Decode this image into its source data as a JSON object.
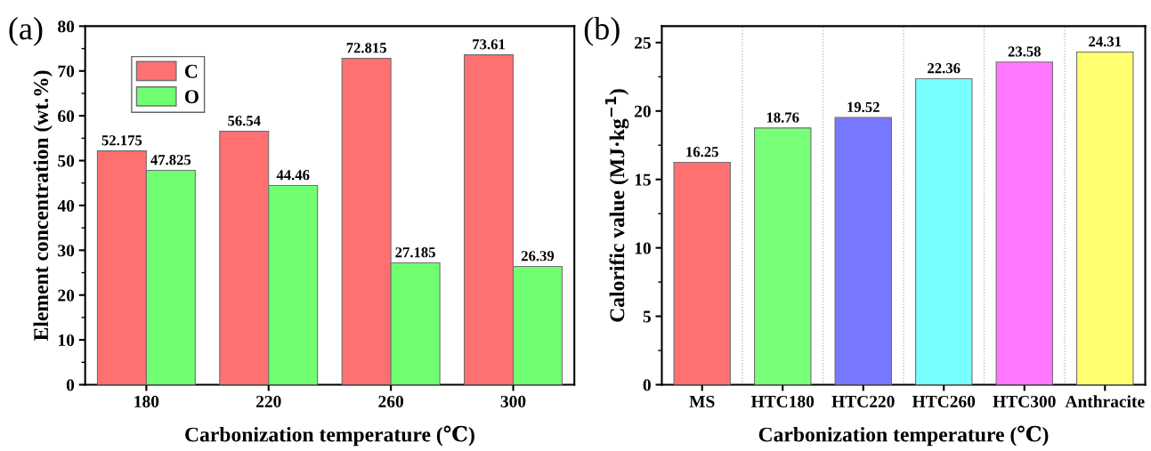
{
  "chart_data": [
    {
      "type": "bar",
      "title": "(a)",
      "xlabel": "Carbonization temperature (℃)",
      "ylabel": "Element concentration (wt.%)",
      "categories": [
        "180",
        "220",
        "260",
        "300"
      ],
      "series": [
        {
          "name": "C",
          "color": "#ff7070",
          "values": [
            52.175,
            56.54,
            72.815,
            73.61
          ]
        },
        {
          "name": "O",
          "color": "#70ff70",
          "values": [
            47.825,
            44.46,
            27.185,
            26.39
          ]
        }
      ],
      "ylim": [
        0,
        80
      ],
      "yticks": [
        0,
        10,
        20,
        30,
        40,
        50,
        60,
        70,
        80
      ],
      "data_labels": true,
      "legend": "top left",
      "grid": false
    },
    {
      "type": "bar",
      "title": "(b)",
      "xlabel": "Carbonization temperature (℃)",
      "ylabel": "Calorific value (MJ·kg$^{−1}$)",
      "categories": [
        "MS",
        "HTC180",
        "HTC220",
        "HTC260",
        "HTC300",
        "Anthracite"
      ],
      "values": [
        16.25,
        18.76,
        19.52,
        22.36,
        23.58,
        24.31
      ],
      "colors": [
        "#ff7070",
        "#77ff77",
        "#7777ff",
        "#77ffff",
        "#ff77ff",
        "#ffff70"
      ],
      "ylim": [
        0,
        26.2
      ],
      "yticks": [
        0,
        5,
        10,
        15,
        20,
        25
      ],
      "data_labels": true,
      "grid": "x"
    }
  ]
}
